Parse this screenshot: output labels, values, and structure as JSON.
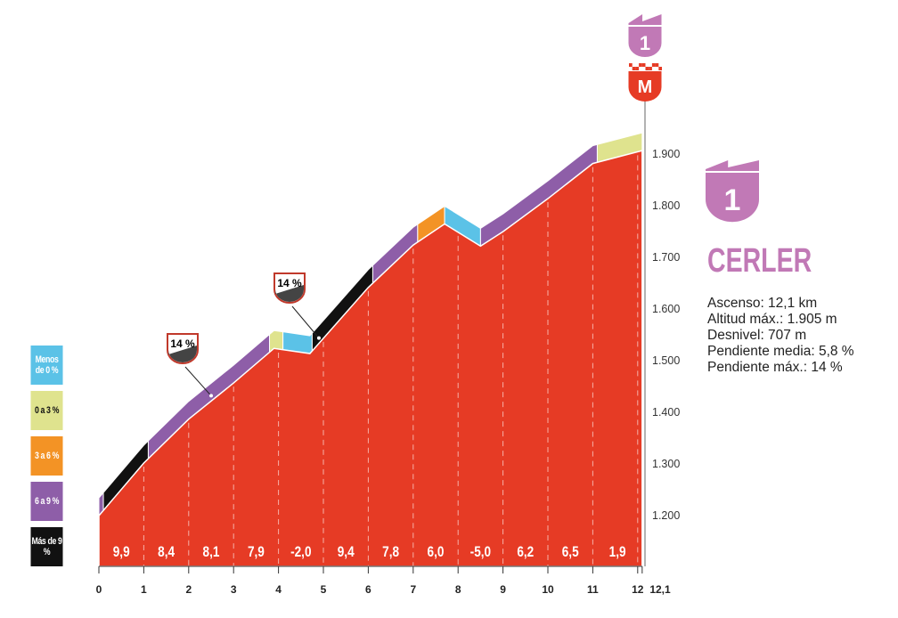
{
  "chart_data": {
    "type": "area",
    "title": "CERLER",
    "category_badge": "1",
    "finish_badge": "M",
    "x_ticks": [
      "0",
      "1",
      "2",
      "3",
      "4",
      "5",
      "6",
      "7",
      "8",
      "9",
      "10",
      "11",
      "12",
      "12,1"
    ],
    "y_ticks": [
      "1.200",
      "1.300",
      "1.400",
      "1.500",
      "1.600",
      "1.700",
      "1.800",
      "1.900"
    ],
    "ylim": [
      1200,
      1900
    ],
    "xlim": [
      0,
      12.1
    ],
    "profile": [
      [
        0,
        1198
      ],
      [
        1,
        1300
      ],
      [
        2,
        1385
      ],
      [
        3,
        1455
      ],
      [
        3.9,
        1522
      ],
      [
        4.7,
        1512
      ],
      [
        6,
        1640
      ],
      [
        7,
        1722
      ],
      [
        7.7,
        1763
      ],
      [
        8.5,
        1720
      ],
      [
        9,
        1748
      ],
      [
        10,
        1812
      ],
      [
        11,
        1880
      ],
      [
        12.1,
        1905
      ]
    ],
    "km_gradients": [
      "9,9",
      "8,4",
      "8,1",
      "7,9",
      "-2,0",
      "9,4",
      "7,8",
      "6,0",
      "-5,0",
      "6,2",
      "6,5",
      "1,9"
    ],
    "bands": [
      [
        0,
        0.1,
        "6a9"
      ],
      [
        0.1,
        1.1,
        "gt9"
      ],
      [
        1.1,
        3.8,
        "6a9"
      ],
      [
        3.8,
        4.1,
        "0a3"
      ],
      [
        4.1,
        4.75,
        "lt0"
      ],
      [
        4.75,
        6.1,
        "gt9"
      ],
      [
        6.1,
        7.1,
        "6a9"
      ],
      [
        7.1,
        7.7,
        "3a6"
      ],
      [
        7.7,
        8.5,
        "lt0"
      ],
      [
        8.5,
        11.1,
        "6a9"
      ],
      [
        11.1,
        12.1,
        "0a3"
      ]
    ],
    "max_markers": [
      {
        "km": 2.5,
        "label": "14 %"
      },
      {
        "km": 4.9,
        "label": "14 %"
      }
    ],
    "legend": [
      {
        "key": "lt0",
        "label": "Menos de 0 %",
        "color": "#5bc2e7",
        "text": "#fff"
      },
      {
        "key": "0a3",
        "label": "0 a 3 %",
        "color": "#dfe38e",
        "text": "#111"
      },
      {
        "key": "3a6",
        "label": "3 a 6 %",
        "color": "#f39325",
        "text": "#fff"
      },
      {
        "key": "6a9",
        "label": "6 a 9 %",
        "color": "#8e5ea8",
        "text": "#fff"
      },
      {
        "key": "gt9",
        "label": "Más de 9 %",
        "color": "#111111",
        "text": "#fff"
      }
    ],
    "profile_color": "#e63b25"
  },
  "climb": {
    "name": "CERLER",
    "badge": "1",
    "stats": [
      "Ascenso: 12,1 km",
      "Altitud máx.: 1.905 m",
      "Desnivel: 707 m",
      "Pendiente media: 5,8 %",
      "Pendiente máx.: 14 %"
    ]
  }
}
